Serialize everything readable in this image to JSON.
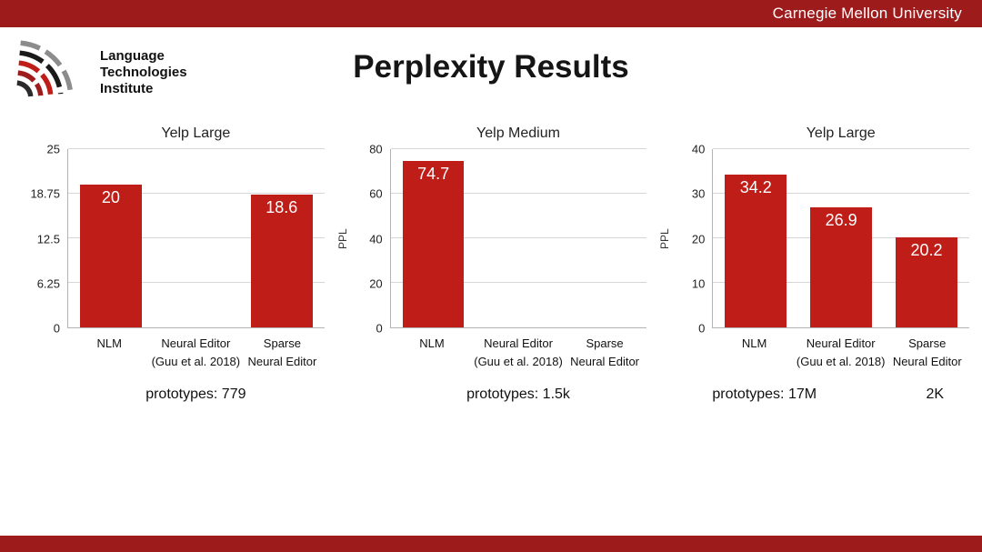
{
  "header": {
    "university": "Carnegie Mellon University"
  },
  "logo": {
    "lines": [
      "Language",
      "Technologies",
      "Institute"
    ]
  },
  "title": "Perplexity Results",
  "colors": {
    "banner_red": "#9e1b1c",
    "bar_red": "#bf1d18",
    "grid": "#d6d6d6",
    "axis": "#b3b3b3"
  },
  "chart_data": [
    {
      "type": "bar",
      "title": "Yelp Large",
      "ylabel": "",
      "ylim": [
        0,
        25
      ],
      "yticks": [
        "0",
        "6.25",
        "12.5",
        "18.75",
        "25"
      ],
      "grid": true,
      "categories": [
        [
          "NLM"
        ],
        [
          "Neural Editor",
          "(Guu et al. 2018)"
        ],
        [
          "Sparse",
          "Neural Editor"
        ]
      ],
      "values": [
        20,
        null,
        18.6
      ],
      "bar_labels": [
        "20",
        "",
        "18.6"
      ],
      "footnotes": [
        "prototypes: 779"
      ]
    },
    {
      "type": "bar",
      "title": "Yelp Medium",
      "ylabel": "PPL",
      "ylim": [
        0,
        80
      ],
      "yticks": [
        "0",
        "20",
        "40",
        "60",
        "80"
      ],
      "grid": true,
      "categories": [
        [
          "NLM"
        ],
        [
          "Neural Editor",
          "(Guu et al. 2018)"
        ],
        [
          "Sparse",
          "Neural Editor"
        ]
      ],
      "values": [
        74.7,
        null,
        null
      ],
      "bar_labels": [
        "74.7",
        "",
        ""
      ],
      "footnotes": [
        "prototypes: 1.5k"
      ]
    },
    {
      "type": "bar",
      "title": "Yelp Large",
      "ylabel": "PPL",
      "ylim": [
        0,
        40
      ],
      "yticks": [
        "0",
        "10",
        "20",
        "30",
        "40"
      ],
      "grid": true,
      "categories": [
        [
          "NLM"
        ],
        [
          "Neural Editor",
          "(Guu et al. 2018)"
        ],
        [
          "Sparse",
          "Neural Editor"
        ]
      ],
      "values": [
        34.2,
        26.9,
        20.2
      ],
      "bar_labels": [
        "34.2",
        "26.9",
        "20.2"
      ],
      "footnotes": [
        "prototypes: 17M",
        "2K"
      ]
    }
  ]
}
